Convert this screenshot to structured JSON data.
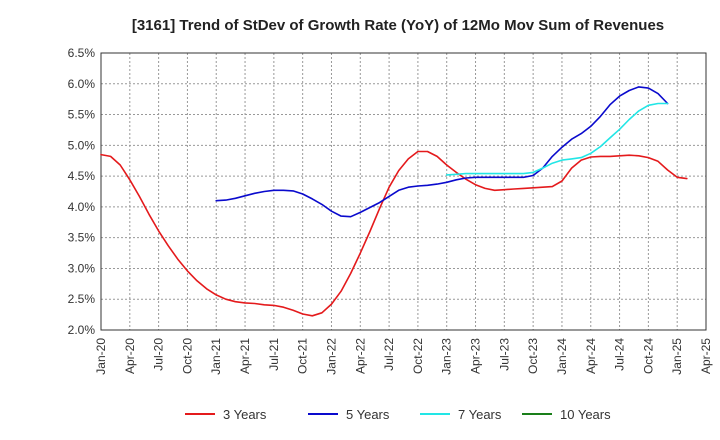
{
  "chart_data": {
    "type": "line",
    "title": "[3161]  Trend of StDev of Growth Rate (YoY) of 12Mo Mov Sum of Revenues",
    "xlabel": "",
    "ylabel": "",
    "ylim": [
      2.0,
      6.5
    ],
    "y_ticks": [
      2.0,
      2.5,
      3.0,
      3.5,
      4.0,
      4.5,
      5.0,
      5.5,
      6.0,
      6.5
    ],
    "y_tick_labels": [
      "2.0%",
      "2.5%",
      "3.0%",
      "3.5%",
      "4.0%",
      "4.5%",
      "5.0%",
      "5.5%",
      "6.0%",
      "6.5%"
    ],
    "x_range_months": [
      0,
      63
    ],
    "x_ticks": [
      0,
      3,
      6,
      9,
      12,
      15,
      18,
      21,
      24,
      27,
      30,
      33,
      36,
      39,
      42,
      45,
      48,
      51,
      54,
      57,
      60,
      63
    ],
    "x_tick_labels": [
      "Jan-20",
      "Apr-20",
      "Jul-20",
      "Oct-20",
      "Jan-21",
      "Apr-21",
      "Jul-21",
      "Oct-21",
      "Jan-22",
      "Apr-22",
      "Jul-22",
      "Oct-22",
      "Jan-23",
      "Apr-23",
      "Jul-23",
      "Oct-23",
      "Jan-24",
      "Apr-24",
      "Jul-24",
      "Oct-24",
      "Jan-25",
      "Apr-25"
    ],
    "grid": true,
    "legend_position": "bottom",
    "series": [
      {
        "name": "3 Years",
        "color": "#e41a1c",
        "start_month": 0,
        "values": [
          4.85,
          4.82,
          4.68,
          4.44,
          4.17,
          3.88,
          3.61,
          3.37,
          3.15,
          2.96,
          2.8,
          2.67,
          2.57,
          2.5,
          2.46,
          2.44,
          2.43,
          2.41,
          2.4,
          2.37,
          2.32,
          2.26,
          2.23,
          2.28,
          2.42,
          2.63,
          2.92,
          3.25,
          3.6,
          3.97,
          4.32,
          4.59,
          4.78,
          4.9,
          4.9,
          4.82,
          4.68,
          4.56,
          4.45,
          4.36,
          4.3,
          4.27,
          4.28,
          4.29,
          4.3,
          4.31,
          4.32,
          4.33,
          4.42,
          4.63,
          4.76,
          4.81,
          4.82,
          4.82,
          4.83,
          4.84,
          4.83,
          4.8,
          4.74,
          4.6,
          4.48,
          4.46
        ]
      },
      {
        "name": "5 Years",
        "color": "#0a0acd",
        "start_month": 12,
        "values": [
          4.1,
          4.11,
          4.14,
          4.18,
          4.22,
          4.25,
          4.27,
          4.27,
          4.26,
          4.21,
          4.13,
          4.04,
          3.93,
          3.85,
          3.84,
          3.91,
          3.99,
          4.07,
          4.17,
          4.27,
          4.32,
          4.34,
          4.35,
          4.37,
          4.4,
          4.44,
          4.47,
          4.48,
          4.48,
          4.48,
          4.48,
          4.48,
          4.48,
          4.51,
          4.63,
          4.82,
          4.97,
          5.1,
          5.19,
          5.31,
          5.47,
          5.66,
          5.8,
          5.89,
          5.95,
          5.93,
          5.84,
          5.68
        ]
      },
      {
        "name": "7 Years",
        "color": "#22e6e6",
        "start_month": 36,
        "values": [
          4.52,
          4.53,
          4.54,
          4.54,
          4.54,
          4.54,
          4.54,
          4.54,
          4.54,
          4.56,
          4.63,
          4.71,
          4.76,
          4.78,
          4.8,
          4.87,
          4.98,
          5.12,
          5.26,
          5.42,
          5.56,
          5.65,
          5.68,
          5.68
        ]
      },
      {
        "name": "10 Years",
        "color": "#1a7f1a",
        "start_month": 0,
        "values": []
      }
    ]
  }
}
